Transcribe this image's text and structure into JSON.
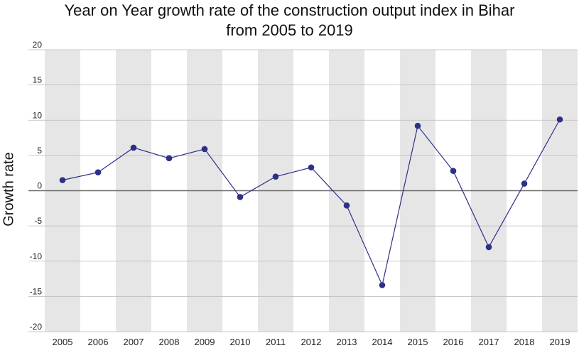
{
  "chart_data": {
    "type": "line",
    "title_line1": "Year on Year growth rate of the construction output index in Bihar",
    "title_line2": "from 2005 to 2019",
    "ylabel": "Growth rate",
    "xlabel": "",
    "categories": [
      "2005",
      "2006",
      "2007",
      "2008",
      "2009",
      "2010",
      "2011",
      "2012",
      "2013",
      "2014",
      "2015",
      "2016",
      "2017",
      "2018",
      "2019"
    ],
    "values": [
      1.5,
      2.6,
      6.1,
      4.6,
      5.9,
      -0.9,
      2.0,
      3.3,
      -2.1,
      -13.4,
      9.2,
      2.8,
      -8.0,
      1.0,
      10.1
    ],
    "ylim": [
      -20,
      20
    ],
    "yticks": [
      "20",
      "15",
      "10",
      "5",
      "0",
      "-5",
      "-10",
      "-15",
      "-20"
    ],
    "line_color": "#2e2f86",
    "band_color": "#e6e6e7",
    "grid": true,
    "legend": "none"
  }
}
